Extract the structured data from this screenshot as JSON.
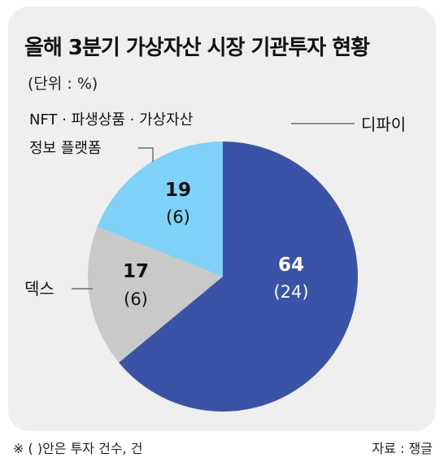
{
  "title": "올해 3분기 가상자산 시장 기관투자 현황",
  "unit": "(단위 : %)",
  "footnote": "※ (  )안은 투자 건수, 건",
  "source": "자료 : 쟁글",
  "colors": {
    "background": "#efefef",
    "defi": "#3a53a6",
    "dex": "#c9c9c9",
    "nft": "#7fd1f7"
  },
  "chart_data": {
    "type": "pie",
    "slices": [
      {
        "label": "디파이",
        "value": 64,
        "count": "(24)",
        "color": "#3a53a6"
      },
      {
        "label": "덱스",
        "value": 17,
        "count": "(6)",
        "color": "#c9c9c9"
      },
      {
        "label_lines": [
          "NFT · 파생상품 · 가상자산",
          "정보 플랫폼"
        ],
        "value": 19,
        "count": "(6)",
        "color": "#7fd1f7"
      }
    ]
  }
}
